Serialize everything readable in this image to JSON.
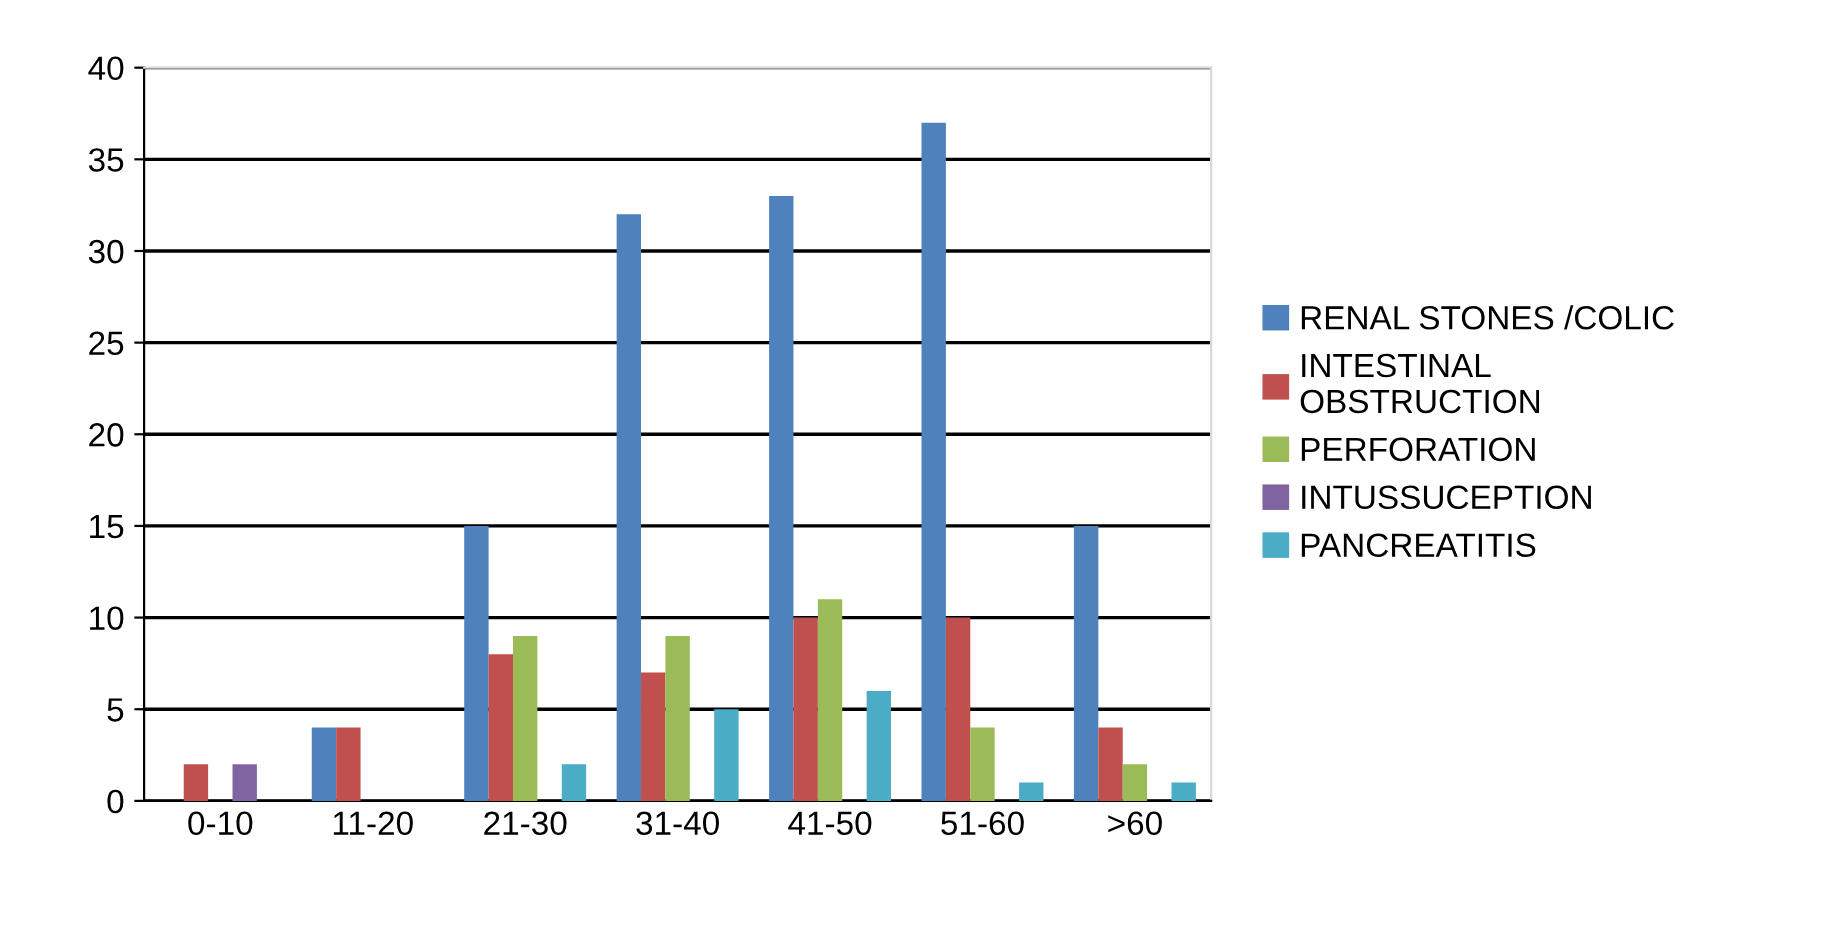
{
  "chart_data": {
    "type": "bar",
    "categories": [
      "0-10",
      "11-20",
      "21-30",
      "31-40",
      "41-50",
      "51-60",
      ">60"
    ],
    "series": [
      {
        "name": "RENAL STONES /COLIC",
        "color": "#4f81bd",
        "values": [
          0,
          4,
          15,
          32,
          33,
          37,
          15
        ]
      },
      {
        "name": "INTESTINAL\nOBSTRUCTION",
        "color": "#c0504d",
        "values": [
          2,
          4,
          8,
          7,
          10,
          10,
          4
        ]
      },
      {
        "name": "PERFORATION",
        "color": "#9bbb59",
        "values": [
          0,
          0,
          9,
          9,
          11,
          4,
          2
        ]
      },
      {
        "name": "INTUSSUCEPTION",
        "color": "#8064a2",
        "values": [
          2,
          0,
          0,
          0,
          0,
          0,
          0
        ]
      },
      {
        "name": "PANCREATITIS",
        "color": "#4bacc6",
        "values": [
          0,
          0,
          2,
          5,
          6,
          1,
          1
        ]
      }
    ],
    "ylim": [
      0,
      40
    ],
    "yticks": [
      0,
      5,
      10,
      15,
      20,
      25,
      30,
      35,
      40
    ],
    "grid": "y",
    "legend": "right"
  }
}
